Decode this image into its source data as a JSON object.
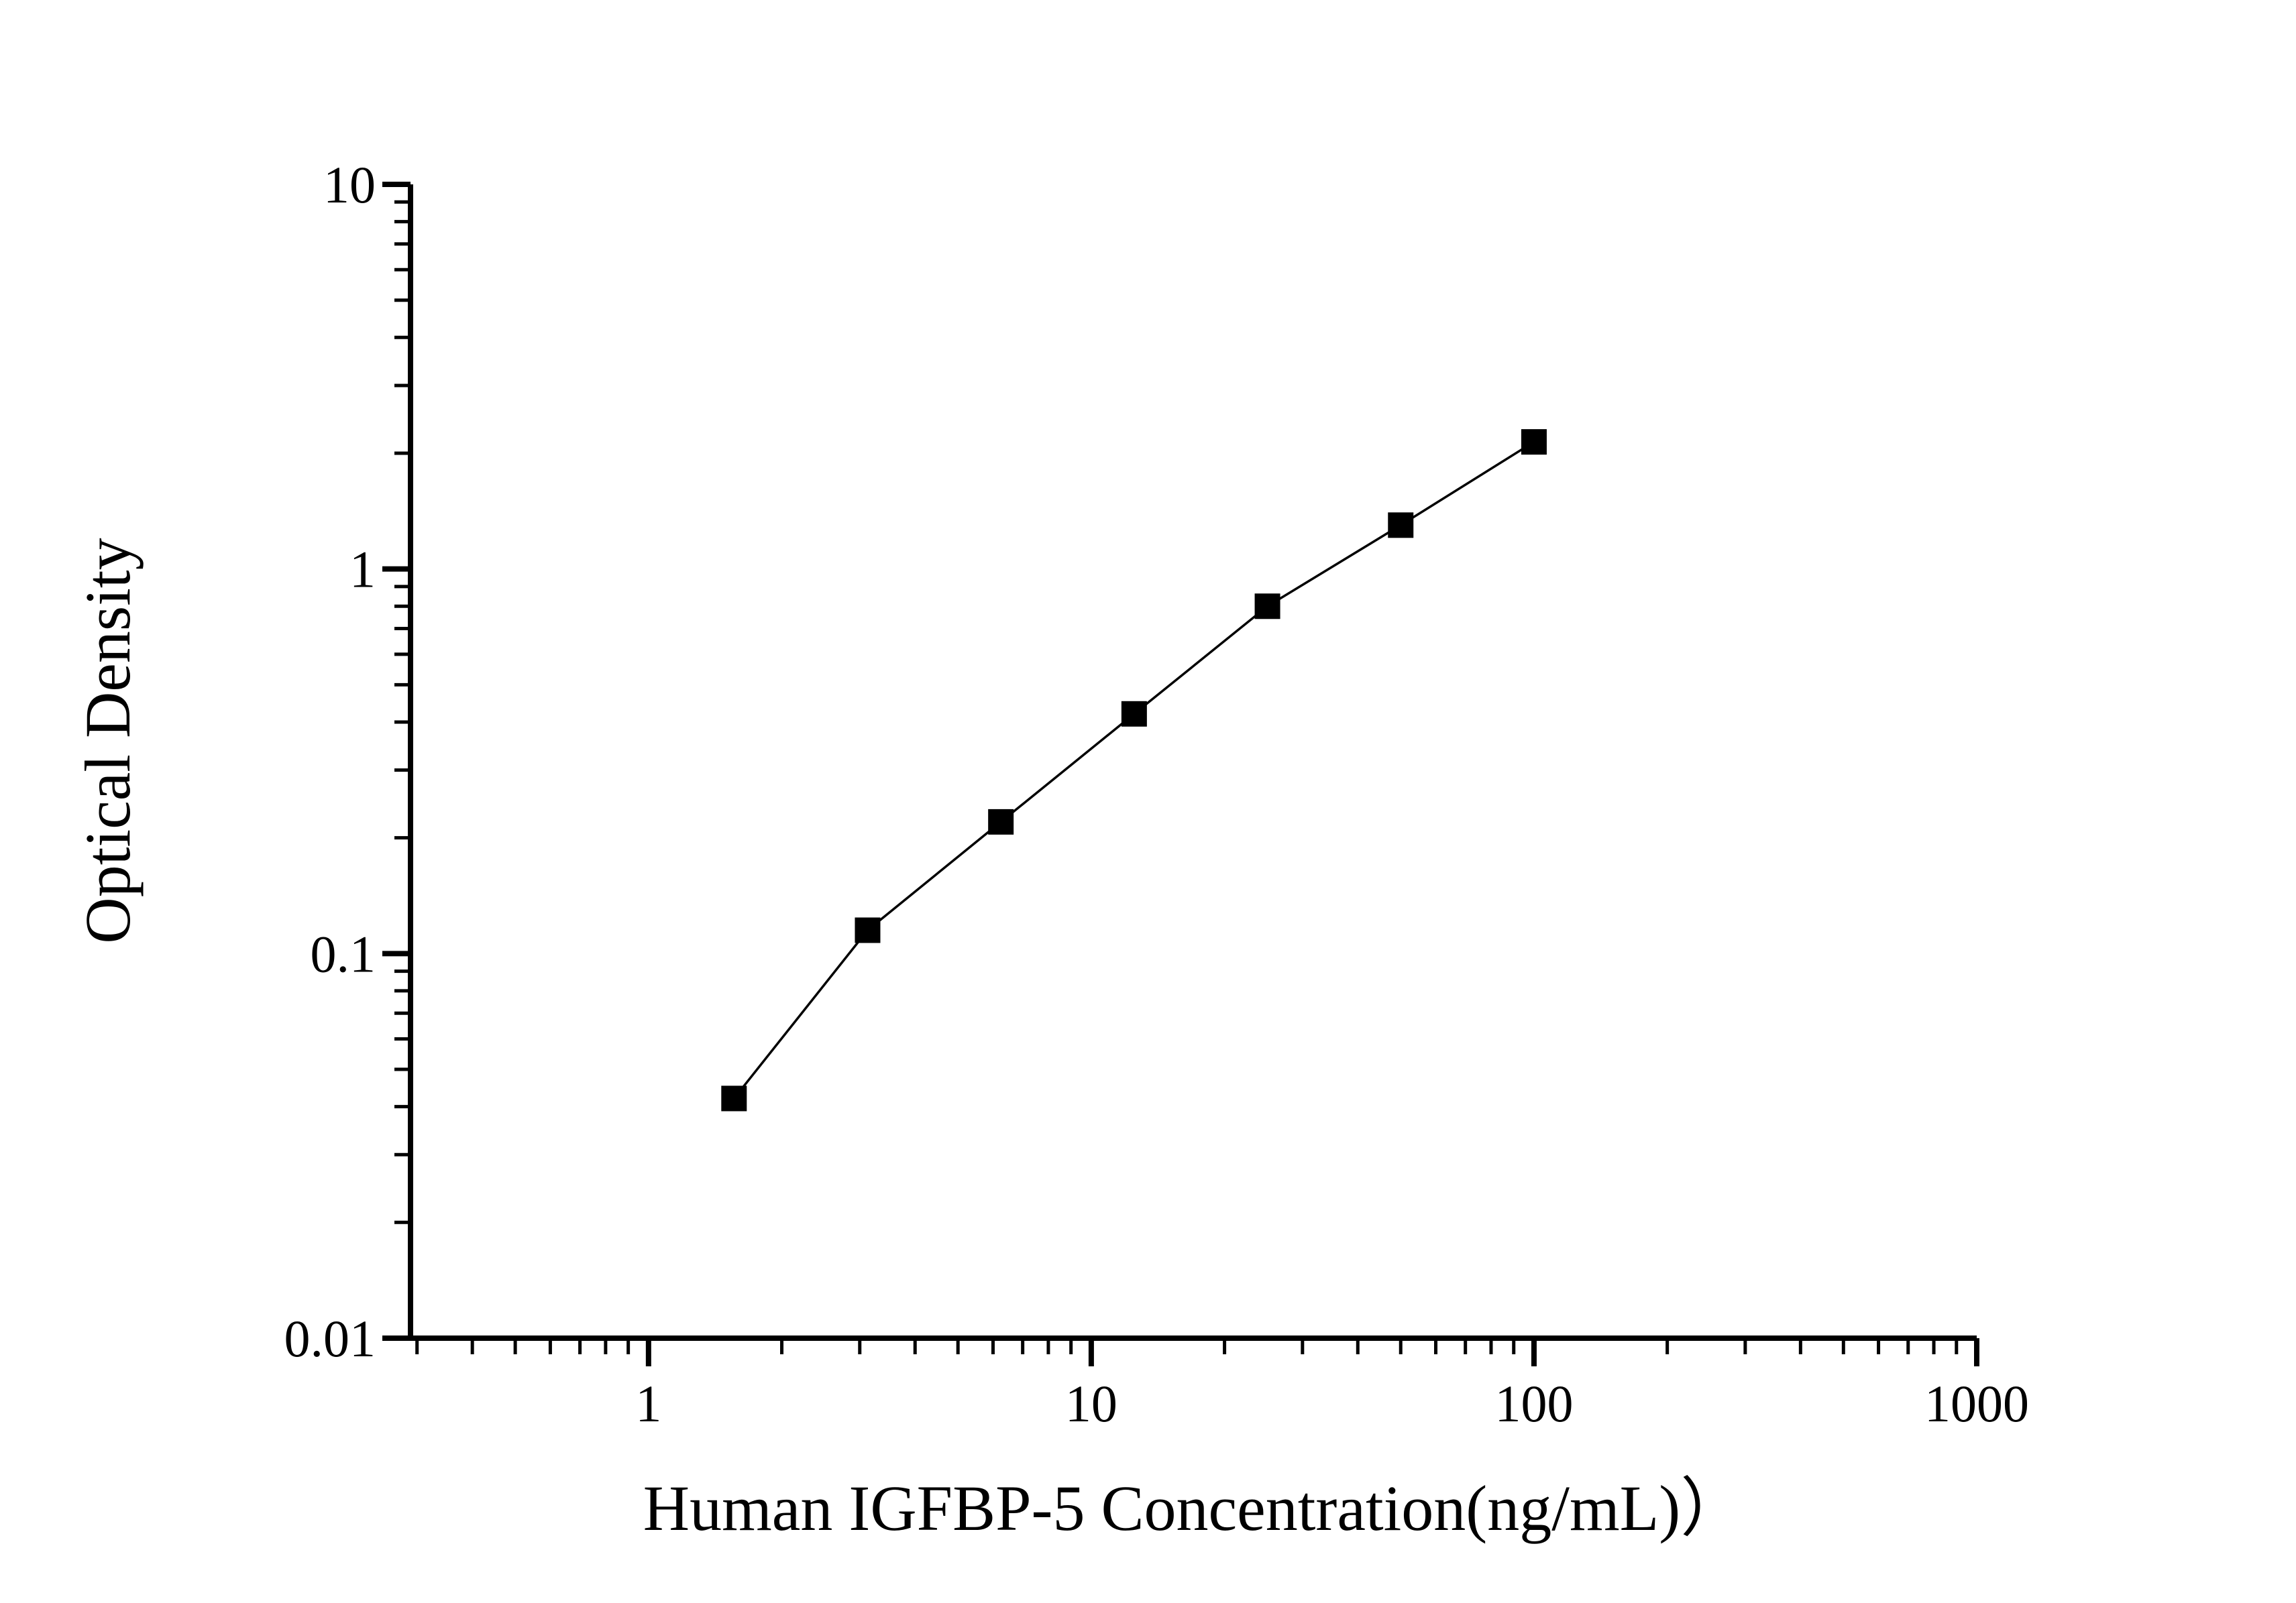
{
  "figure": {
    "background_color": "#ffffff",
    "axis_color": "#000000",
    "marker_color": "#000000",
    "line_color": "#000000"
  },
  "chart_data": {
    "type": "line",
    "title": "",
    "xlabel": "Human IGFBP-5 Concentration(ng/mL)）",
    "ylabel": "Optical Density",
    "x_scale": "log",
    "y_scale": "log",
    "xlim": [
      0.29,
      1000
    ],
    "ylim": [
      0.01,
      10
    ],
    "grid": false,
    "legend_position": "none",
    "x_major_ticks": [
      1,
      10,
      100,
      1000
    ],
    "x_major_tick_labels": [
      "1",
      "10",
      "100",
      "1000"
    ],
    "y_major_ticks": [
      0.01,
      0.1,
      1,
      10
    ],
    "y_major_tick_labels": [
      "0.01",
      "0.1",
      "1",
      "10"
    ],
    "series": [
      {
        "name": "standard-curve",
        "marker": "filled-square",
        "x": [
          1.56,
          3.125,
          6.25,
          12.5,
          25,
          50,
          100
        ],
        "y": [
          0.042,
          0.115,
          0.22,
          0.42,
          0.8,
          1.3,
          2.14
        ]
      }
    ]
  }
}
